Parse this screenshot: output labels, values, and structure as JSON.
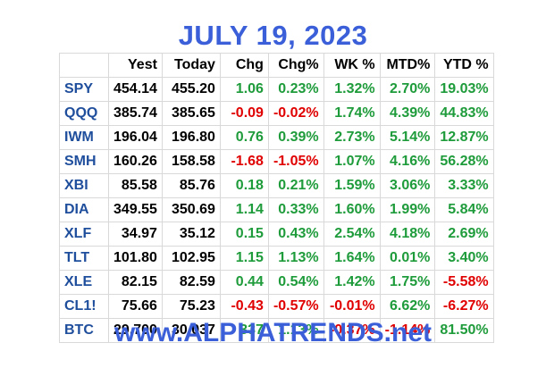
{
  "title": "JULY 19, 2023",
  "footer": "www.ALPHATRENDS.net",
  "colors": {
    "header_blue": "#3a5fd8",
    "symbol_blue": "#1f4e9c",
    "positive": "#1e9b3a",
    "negative": "#e00000"
  },
  "columns": [
    "",
    "Yest",
    "Today",
    "Chg",
    "Chg%",
    "WK %",
    "MTD%",
    "YTD %"
  ],
  "rows": [
    [
      "SPY",
      "454.14",
      "455.20",
      "1.06",
      "0.23%",
      "1.32%",
      "2.70%",
      "19.03%"
    ],
    [
      "QQQ",
      "385.74",
      "385.65",
      "-0.09",
      "-0.02%",
      "1.74%",
      "4.39%",
      "44.83%"
    ],
    [
      "IWM",
      "196.04",
      "196.80",
      "0.76",
      "0.39%",
      "2.73%",
      "5.14%",
      "12.87%"
    ],
    [
      "SMH",
      "160.26",
      "158.58",
      "-1.68",
      "-1.05%",
      "1.07%",
      "4.16%",
      "56.28%"
    ],
    [
      "XBI",
      "85.58",
      "85.76",
      "0.18",
      "0.21%",
      "1.59%",
      "3.06%",
      "3.33%"
    ],
    [
      "DIA",
      "349.55",
      "350.69",
      "1.14",
      "0.33%",
      "1.60%",
      "1.99%",
      "5.84%"
    ],
    [
      "XLF",
      "34.97",
      "35.12",
      "0.15",
      "0.43%",
      "2.54%",
      "4.18%",
      "2.69%"
    ],
    [
      "TLT",
      "101.80",
      "102.95",
      "1.15",
      "1.13%",
      "1.64%",
      "0.01%",
      "3.40%"
    ],
    [
      "XLE",
      "82.15",
      "82.59",
      "0.44",
      "0.54%",
      "1.42%",
      "1.75%",
      "-5.58%"
    ],
    [
      "CL1!",
      "75.66",
      "75.23",
      "-0.43",
      "-0.57%",
      "-0.01%",
      "6.62%",
      "-6.27%"
    ],
    [
      "BTC",
      "29,700",
      "30,037",
      "337",
      "1.13%",
      "-0.37%",
      "-1.14%",
      "81.50%"
    ]
  ]
}
